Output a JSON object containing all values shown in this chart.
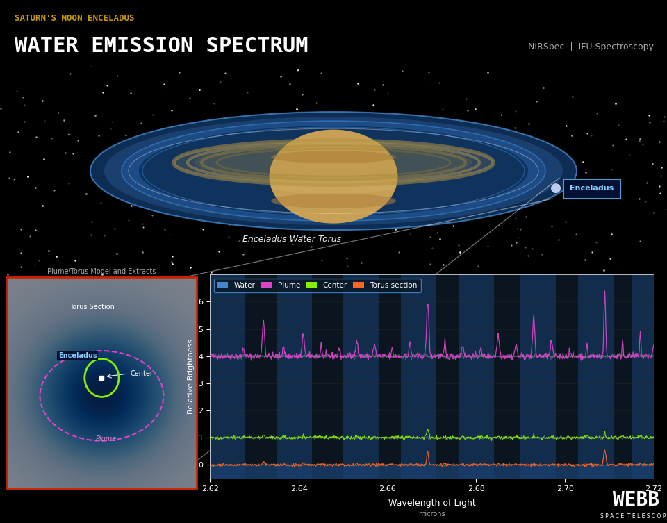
{
  "title_sub": "SATURN'S MOON ENCELADUS",
  "title_main": "WATER EMISSION SPECTRUM",
  "title_sub_color": "#c8960c",
  "title_main_color": "#ffffff",
  "nirspec_text": "NIRSpec  |  IFU Spectroscopy",
  "nirspec_color": "#aaaaaa",
  "bg_color": "#000000",
  "plot_bg_color": "#0a1520",
  "xlabel": "Wavelength of Light",
  "xlabel_sub": "microns",
  "ylabel": "Relative Brightness",
  "xlim": [
    2.62,
    2.72
  ],
  "ylim": [
    -0.5,
    7.0
  ],
  "yticks": [
    0,
    1,
    2,
    3,
    4,
    5,
    6
  ],
  "xticks": [
    2.62,
    2.64,
    2.66,
    2.68,
    2.7,
    2.72
  ],
  "legend_items": [
    "Water",
    "Plume",
    "Center",
    "Torus section"
  ],
  "legend_colors": [
    "#4488cc",
    "#dd44cc",
    "#88ee00",
    "#ff6622"
  ],
  "water_torus_label": "Enceladus Water Torus",
  "plume_torus_caption": "Plume/Torus Model and Extracts",
  "stripe_color": "#1a3050",
  "stripe_alpha": 0.7,
  "water_band_regions": [
    [
      2.62,
      2.628
    ],
    [
      2.635,
      2.643
    ],
    [
      2.65,
      2.658
    ],
    [
      2.663,
      2.671
    ],
    [
      2.676,
      2.684
    ],
    [
      2.69,
      2.698
    ],
    [
      2.703,
      2.711
    ],
    [
      2.715,
      2.722
    ]
  ],
  "water_lines": [
    2.6275,
    2.632,
    2.6365,
    2.641,
    2.645,
    2.649,
    2.653,
    2.657,
    2.661,
    2.665,
    2.669,
    2.673,
    2.677,
    2.681,
    2.685,
    2.689,
    2.693,
    2.697,
    2.701,
    2.705,
    2.709,
    2.713,
    2.717,
    2.721
  ],
  "plume_heights": [
    0.3,
    1.3,
    0.4,
    0.8,
    0.5,
    0.3,
    0.6,
    0.4,
    0.3,
    0.5,
    2.0,
    0.6,
    0.4,
    0.3,
    0.8,
    0.4,
    1.4,
    0.5,
    0.3,
    0.4,
    2.4,
    0.6,
    1.0,
    0.4
  ],
  "center_heights": [
    0.05,
    0.1,
    0.05,
    0.1,
    0.05,
    0.03,
    0.08,
    0.05,
    0.03,
    0.06,
    0.3,
    0.08,
    0.05,
    0.04,
    0.1,
    0.05,
    0.15,
    0.06,
    0.04,
    0.05,
    0.25,
    0.08,
    0.1,
    0.05
  ],
  "torus_heights": [
    0.03,
    0.08,
    0.03,
    0.06,
    0.03,
    0.02,
    0.05,
    0.03,
    0.02,
    0.04,
    0.5,
    0.06,
    0.03,
    0.03,
    0.06,
    0.03,
    0.08,
    0.04,
    0.03,
    0.03,
    0.55,
    0.05,
    0.06,
    0.03
  ]
}
